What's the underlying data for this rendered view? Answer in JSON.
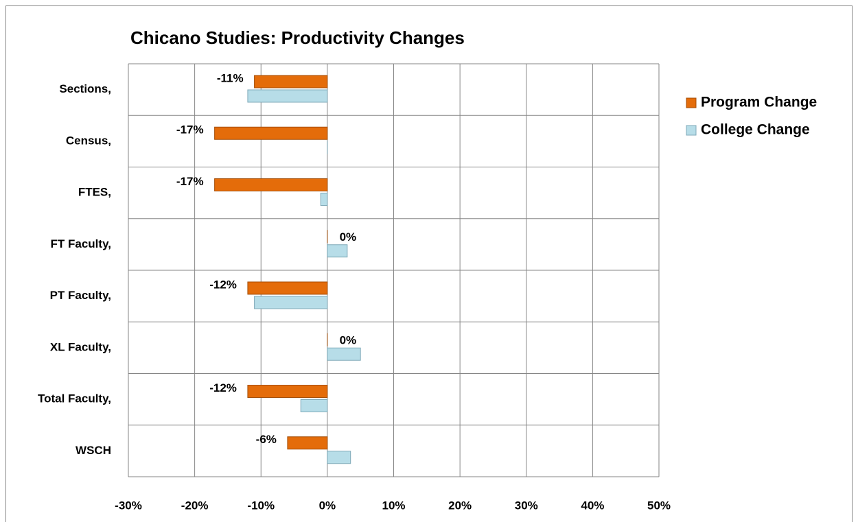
{
  "chart_data": {
    "type": "bar",
    "orientation": "horizontal",
    "title": "Chicano Studies: Productivity Changes",
    "categories": [
      "Sections,",
      "Census,",
      "FTES,",
      "FT Faculty,",
      "PT Faculty,",
      "XL Faculty,",
      "Total Faculty,",
      "WSCH"
    ],
    "series": [
      {
        "name": "Program Change",
        "color": "#e46c0a",
        "values": [
          -11,
          -17,
          -17,
          0,
          -12,
          0,
          -12,
          -6
        ],
        "value_labels": [
          "-11%",
          "-17%",
          "-17%",
          "0%",
          "-12%",
          "0%",
          "-12%",
          "-6%"
        ]
      },
      {
        "name": "College Change",
        "color": "#b7dde8",
        "values": [
          -12,
          0,
          -1,
          3,
          -11,
          5,
          -4,
          3.5
        ]
      }
    ],
    "xlim": [
      -30,
      50
    ],
    "xticks": [
      {
        "value": -30,
        "label": "-30%"
      },
      {
        "value": -20,
        "label": "-20%"
      },
      {
        "value": -10,
        "label": "-10%"
      },
      {
        "value": 0,
        "label": "0%"
      },
      {
        "value": 10,
        "label": "10%"
      },
      {
        "value": 20,
        "label": "20%"
      },
      {
        "value": 30,
        "label": "30%"
      },
      {
        "value": 40,
        "label": "40%"
      },
      {
        "value": 50,
        "label": "50%"
      }
    ],
    "grid": true,
    "legend": "right"
  }
}
